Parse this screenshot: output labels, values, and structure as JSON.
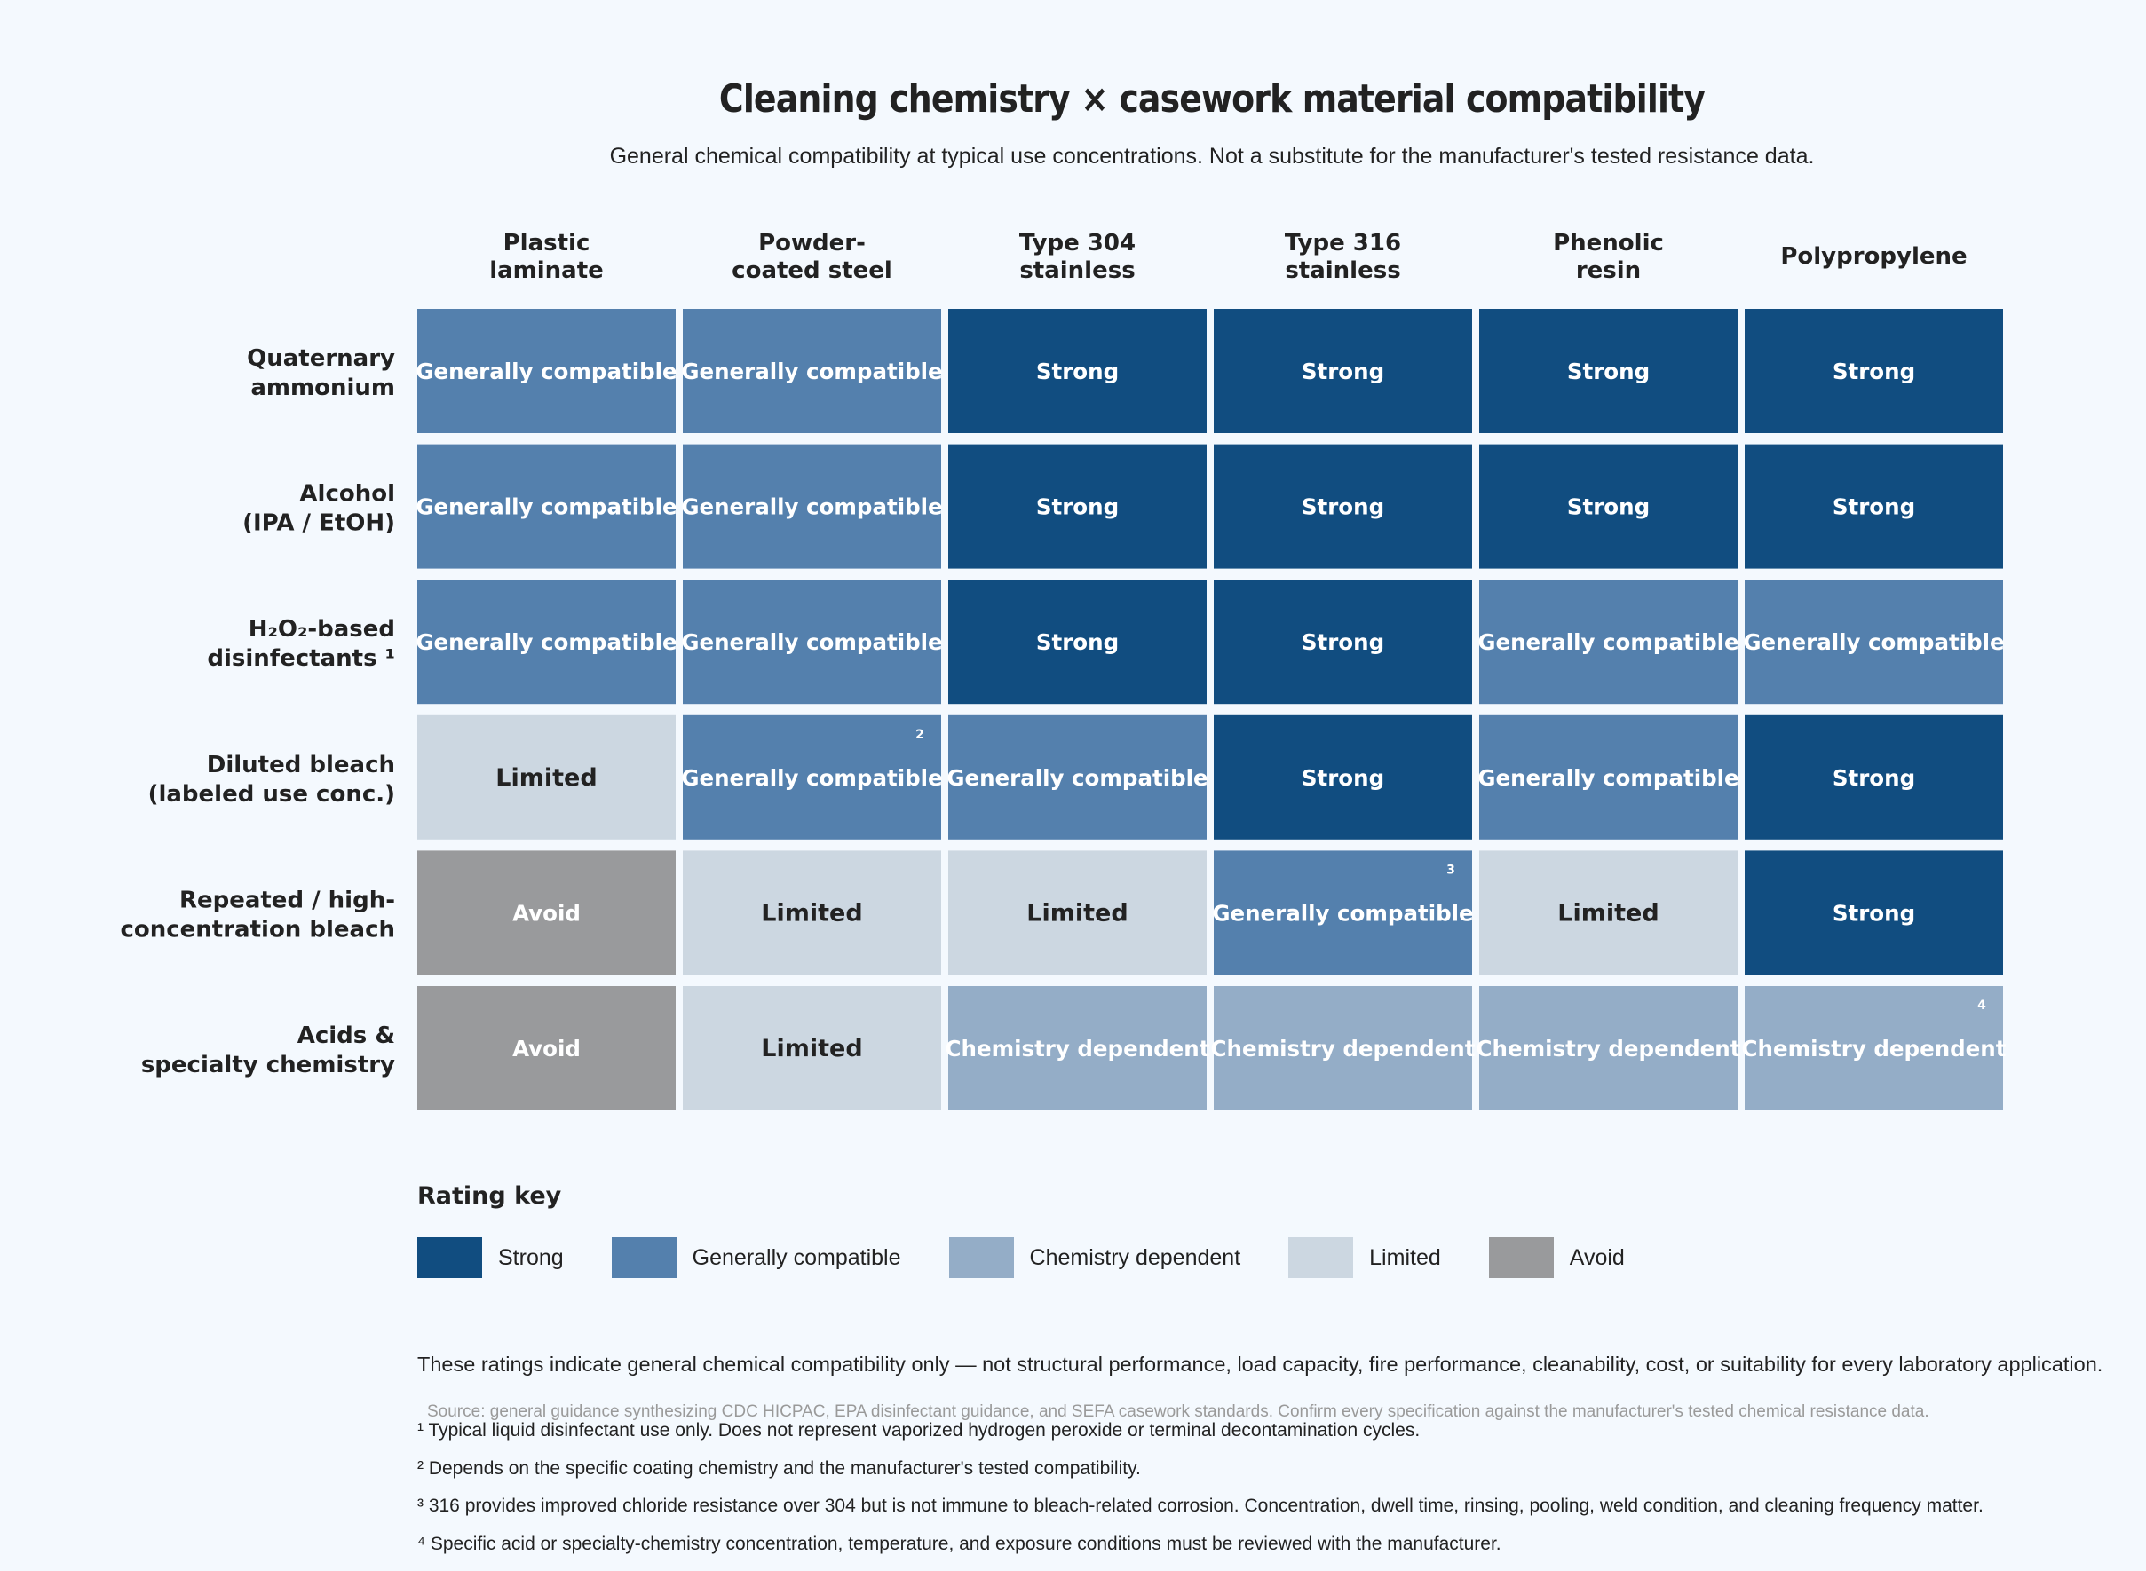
{
  "colors": {
    "Strong": "#114d80",
    "Generally compatible": "#5480ad",
    "Chemistry dependent": "#94adc7",
    "Limited": "#ccd7e1",
    "Avoid": "#999a9c",
    "background": "#f4f9fe"
  },
  "chart_data": {
    "type": "heatmap",
    "title": "Cleaning chemistry × casework material compatibility",
    "subtitle": "General chemical compatibility at typical use concentrations. Not a substitute for the manufacturer's tested resistance data.",
    "columns": [
      [
        "Plastic",
        "laminate"
      ],
      [
        "Powder-",
        "coated steel"
      ],
      [
        "Type 304",
        "stainless"
      ],
      [
        "Type 316",
        "stainless"
      ],
      [
        "Phenolic",
        "resin"
      ],
      [
        "Polypropylene"
      ]
    ],
    "rows": [
      [
        "Quaternary",
        "ammonium"
      ],
      [
        "Alcohol",
        "(IPA / EtOH)"
      ],
      [
        "H₂O₂-based",
        "disinfectants ¹"
      ],
      [
        "Diluted bleach",
        "(labeled use conc.)"
      ],
      [
        "Repeated / high-",
        "concentration bleach"
      ],
      [
        "Acids &",
        "specialty chemistry"
      ]
    ],
    "values": [
      [
        "Generally compatible",
        "Generally compatible",
        "Strong",
        "Strong",
        "Strong",
        "Strong"
      ],
      [
        "Generally compatible",
        "Generally compatible",
        "Strong",
        "Strong",
        "Strong",
        "Strong"
      ],
      [
        "Generally compatible",
        "Generally compatible",
        "Strong",
        "Strong",
        "Generally compatible",
        "Generally compatible"
      ],
      [
        "Limited",
        "Generally compatible",
        "Generally compatible",
        "Strong",
        "Generally compatible",
        "Strong"
      ],
      [
        "Avoid",
        "Limited",
        "Limited",
        "Generally compatible",
        "Limited",
        "Strong"
      ],
      [
        "Avoid",
        "Limited",
        "Chemistry dependent",
        "Chemistry dependent",
        "Chemistry dependent",
        "Chemistry dependent"
      ]
    ],
    "cell_footnotes": [
      {
        "row": 3,
        "col": 1,
        "mark": "2"
      },
      {
        "row": 4,
        "col": 3,
        "mark": "3"
      },
      {
        "row": 5,
        "col": 5,
        "mark": "4"
      }
    ],
    "legend_title": "Rating key",
    "legend": [
      "Strong",
      "Generally compatible",
      "Chemistry dependent",
      "Limited",
      "Avoid"
    ]
  },
  "disclaimer": "These ratings indicate general chemical compatibility only — not structural performance, load capacity, fire performance, cleanability, cost, or suitability for every laboratory application.",
  "source": "Source: general guidance synthesizing CDC HICPAC, EPA disinfectant guidance, and SEFA casework standards. Confirm every specification against the manufacturer's tested chemical resistance data.",
  "footnotes": [
    "¹ Typical liquid disinfectant use only. Does not represent vaporized hydrogen peroxide or terminal decontamination cycles.",
    "² Depends on the specific coating chemistry and the manufacturer's tested compatibility.",
    "³ 316 provides improved chloride resistance over 304 but is not immune to bleach-related corrosion. Concentration, dwell time, rinsing, pooling, weld condition, and cleaning frequency matter.",
    "⁴ Specific acid or specialty-chemistry concentration, temperature, and exposure conditions must be reviewed with the manufacturer."
  ]
}
